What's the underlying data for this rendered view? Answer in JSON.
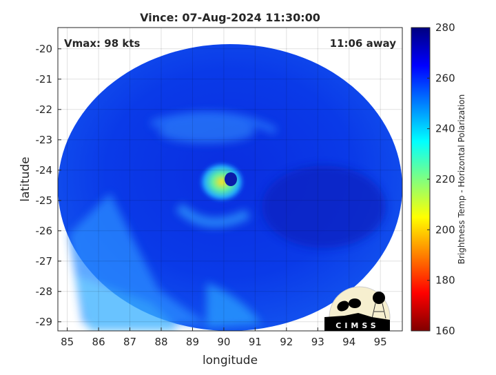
{
  "chart_data": {
    "type": "heatmap",
    "title": "Vince: 07-Aug-2024 11:30:00",
    "xlabel": "longitude",
    "ylabel": "latitude",
    "xlim": [
      84.7,
      95.7
    ],
    "ylim": [
      -29.3,
      -19.3
    ],
    "x_ticks": [
      "85",
      "86",
      "87",
      "88",
      "89",
      "90",
      "91",
      "92",
      "93",
      "94",
      "95"
    ],
    "y_ticks": [
      "-20",
      "-21",
      "-22",
      "-23",
      "-24",
      "-25",
      "-26",
      "-27",
      "-28",
      "-29"
    ],
    "grid": true,
    "annotations": {
      "vmax": "Vmax: 98 kts",
      "away": "11:06 away"
    },
    "storm_center": {
      "lon": 90.1,
      "lat": -24.4
    },
    "colorbar": {
      "label": "Brightness Temp - Horizontal Polarization",
      "range": [
        160,
        280
      ],
      "ticks": [
        "160",
        "180",
        "200",
        "220",
        "240",
        "260",
        "280"
      ],
      "colormap": "jet"
    },
    "logo": "CIMSS"
  }
}
